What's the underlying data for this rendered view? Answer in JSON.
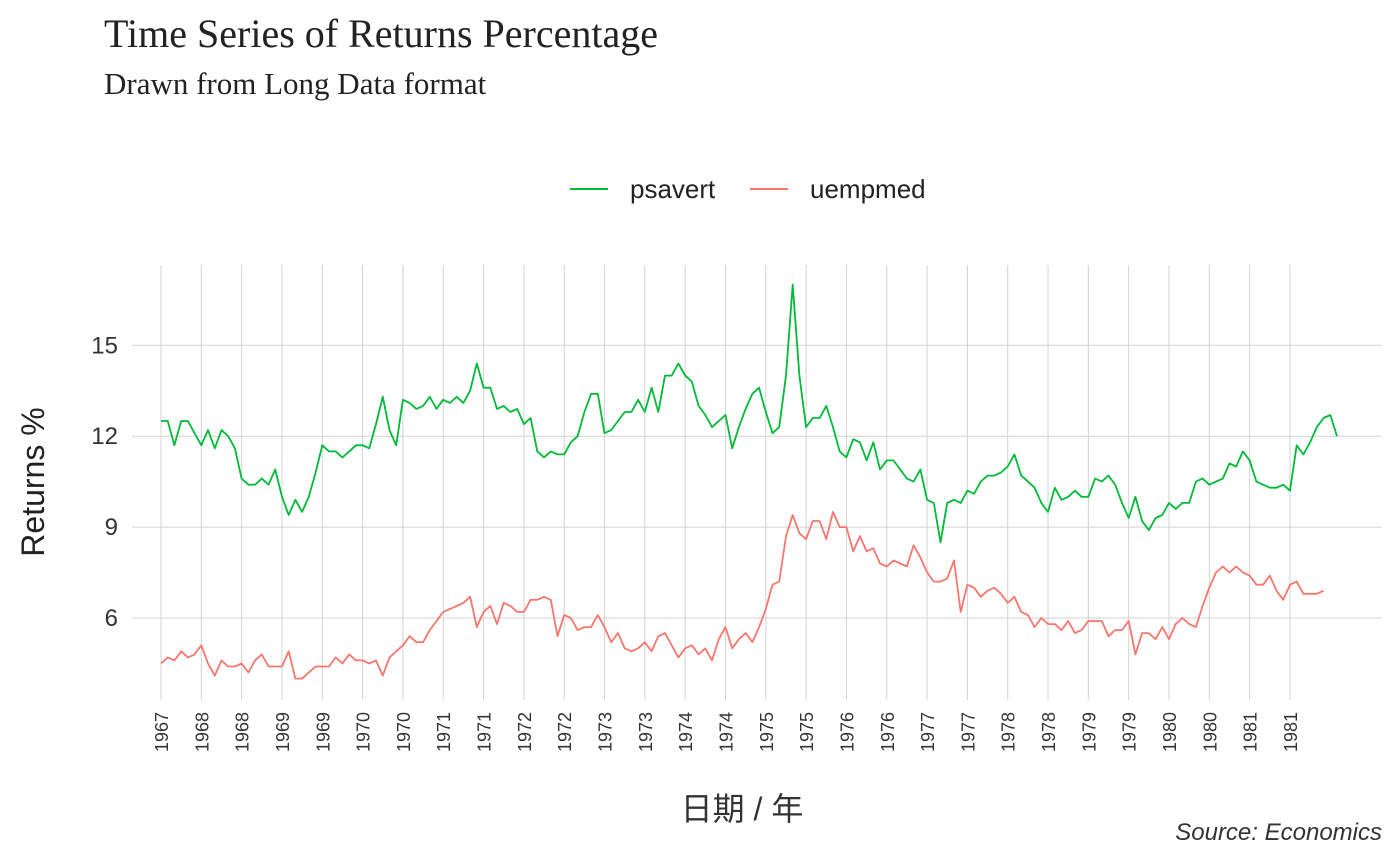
{
  "chart_data": {
    "type": "line",
    "title": "Time Series of Returns Percentage",
    "subtitle": "Drawn from Long Data format",
    "xlabel": "日期 / 年",
    "ylabel": "Returns %",
    "caption": "Source: Economics",
    "ylim": [
      3.1,
      17.6
    ],
    "yticks": [
      6,
      9,
      12,
      15
    ],
    "grid": true,
    "legend_position": "top",
    "x_start": "1967-07",
    "x_step_months": 1,
    "x_tick_step_months": 6,
    "x_tick_labels": [
      "1967",
      "1968",
      "1968",
      "1969",
      "1969",
      "1970",
      "1970",
      "1971",
      "1971",
      "1972",
      "1972",
      "1973",
      "1973",
      "1974",
      "1974",
      "1975",
      "1975",
      "1976",
      "1976",
      "1977",
      "1977",
      "1978",
      "1978",
      "1979",
      "1979",
      "1980",
      "1980",
      "1981",
      "1981"
    ],
    "series": [
      {
        "name": "psavert",
        "color": "#00BA38",
        "values": [
          12.5,
          12.5,
          11.7,
          12.5,
          12.5,
          12.1,
          11.7,
          12.2,
          11.6,
          12.2,
          12.0,
          11.6,
          10.6,
          10.4,
          10.4,
          10.6,
          10.4,
          10.9,
          10.0,
          9.4,
          9.9,
          9.5,
          10.0,
          10.8,
          11.7,
          11.5,
          11.5,
          11.3,
          11.5,
          11.7,
          11.7,
          11.6,
          12.4,
          13.3,
          12.2,
          11.7,
          13.2,
          13.1,
          12.9,
          13.0,
          13.3,
          12.9,
          13.2,
          13.1,
          13.3,
          13.1,
          13.5,
          14.4,
          13.6,
          13.6,
          12.9,
          13.0,
          12.8,
          12.9,
          12.4,
          12.6,
          11.5,
          11.3,
          11.5,
          11.4,
          11.4,
          11.8,
          12.0,
          12.8,
          13.4,
          13.4,
          12.1,
          12.2,
          12.5,
          12.8,
          12.8,
          13.2,
          12.8,
          13.6,
          12.8,
          14.0,
          14.0,
          14.4,
          14.0,
          13.8,
          13.0,
          12.7,
          12.3,
          12.5,
          12.7,
          11.6,
          12.3,
          12.9,
          13.4,
          13.6,
          12.8,
          12.1,
          12.3,
          14.0,
          17.0,
          14.0,
          12.3,
          12.6,
          12.6,
          13.0,
          12.3,
          11.5,
          11.3,
          11.9,
          11.8,
          11.2,
          11.8,
          10.9,
          11.2,
          11.2,
          10.9,
          10.6,
          10.5,
          10.9,
          9.9,
          9.8,
          8.5,
          9.8,
          9.9,
          9.8,
          10.2,
          10.1,
          10.5,
          10.7,
          10.7,
          10.8,
          11.0,
          11.4,
          10.7,
          10.5,
          10.3,
          9.8,
          9.5,
          10.3,
          9.9,
          10.0,
          10.2,
          10.0,
          10.0,
          10.6,
          10.5,
          10.7,
          10.4,
          9.8,
          9.3,
          10.0,
          9.2,
          8.9,
          9.3,
          9.4,
          9.8,
          9.6,
          9.8,
          9.8,
          10.5,
          10.6,
          10.4,
          10.5,
          10.6,
          11.1,
          11.0,
          11.5,
          11.2,
          10.5,
          10.4,
          10.3,
          10.3,
          10.4,
          10.2,
          11.7,
          11.4,
          11.8,
          12.3,
          12.6,
          12.7,
          12.0
        ]
      },
      {
        "name": "uempmed",
        "color": "#F8766D",
        "values": [
          4.5,
          4.7,
          4.6,
          4.9,
          4.7,
          4.8,
          5.1,
          4.5,
          4.1,
          4.6,
          4.4,
          4.4,
          4.5,
          4.2,
          4.6,
          4.8,
          4.4,
          4.4,
          4.4,
          4.9,
          4.0,
          4.0,
          4.2,
          4.4,
          4.4,
          4.4,
          4.7,
          4.5,
          4.8,
          4.6,
          4.6,
          4.5,
          4.6,
          4.1,
          4.7,
          4.9,
          5.1,
          5.4,
          5.2,
          5.2,
          5.6,
          5.9,
          6.2,
          6.3,
          6.4,
          6.5,
          6.7,
          5.7,
          6.2,
          6.4,
          5.8,
          6.5,
          6.4,
          6.2,
          6.2,
          6.6,
          6.6,
          6.7,
          6.6,
          5.4,
          6.1,
          6.0,
          5.6,
          5.7,
          5.7,
          6.1,
          5.7,
          5.2,
          5.5,
          5.0,
          4.9,
          5.0,
          5.2,
          4.9,
          5.4,
          5.5,
          5.1,
          4.7,
          5.0,
          5.1,
          4.8,
          5.0,
          4.6,
          5.3,
          5.7,
          5.0,
          5.3,
          5.5,
          5.2,
          5.7,
          6.3,
          7.1,
          7.2,
          8.7,
          9.4,
          8.8,
          8.6,
          9.2,
          9.2,
          8.6,
          9.5,
          9.0,
          9.0,
          8.2,
          8.7,
          8.2,
          8.3,
          7.8,
          7.7,
          7.9,
          7.8,
          7.7,
          8.4,
          8.0,
          7.5,
          7.2,
          7.2,
          7.3,
          7.9,
          6.2,
          7.1,
          7.0,
          6.7,
          6.9,
          7.0,
          6.8,
          6.5,
          6.7,
          6.2,
          6.1,
          5.7,
          6.0,
          5.8,
          5.8,
          5.6,
          5.9,
          5.5,
          5.6,
          5.9,
          5.9,
          5.9,
          5.4,
          5.6,
          5.6,
          5.9,
          4.8,
          5.5,
          5.5,
          5.3,
          5.7,
          5.3,
          5.8,
          6.0,
          5.8,
          5.7,
          6.4,
          7.0,
          7.5,
          7.7,
          7.5,
          7.7,
          7.5,
          7.4,
          7.1,
          7.1,
          7.4,
          6.9,
          6.6,
          7.1,
          7.2,
          6.8,
          6.8,
          6.8,
          6.9
        ]
      }
    ]
  }
}
